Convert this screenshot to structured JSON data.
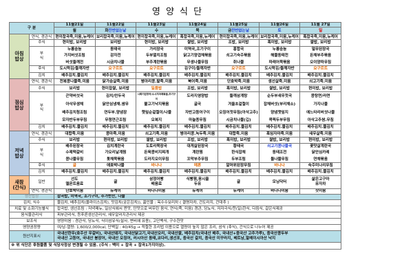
{
  "title": "영 양 식 단",
  "header": {
    "label": "구  분",
    "days": [
      {
        "date": "11월21일",
        "weekday": "월",
        "note": ""
      },
      {
        "date": "11월22일",
        "weekday": "화",
        "note": "잔반없는날"
      },
      {
        "date": "11월23일",
        "weekday": "수",
        "note": ""
      },
      {
        "date": "11월24일",
        "weekday": "목",
        "note": ""
      },
      {
        "date": "11월25일",
        "weekday": "금",
        "note": "잔반없는날"
      },
      {
        "date": "11월26일",
        "weekday": "토",
        "note": ""
      },
      {
        "date": "11월 27일",
        "weekday": "일",
        "note": ""
      }
    ],
    "weekday_colors": {
      "토": "#1f3fd6",
      "일": "#e00000",
      "note": "#1f3fd6"
    }
  },
  "colors": {
    "header": "#b7dee8",
    "breakfast": "#d7e4bc",
    "lunch": "#e6b9b8",
    "dinner": "#b9cde5",
    "snack": "#fac08f",
    "dessert_text": "#e36c09"
  },
  "meals": [
    {
      "key": "breakfast",
      "label": "아침\n밥상",
      "groups": [
        {
          "label": "연식, 경관식",
          "rows": [
            [
              "현미찹곡죽,미음,뉴케어",
              "보리찹곡죽,미음,뉴케어",
              "현미찹곡죽,미음,뉴케어",
              "흑찹곡죽,미음,뉴케어",
              "현미찹곡죽,미음,뉴케어",
              "보리찹곡죽,미음,뉴케어",
              "흑찹곡죽,미음,뉴케어"
            ]
          ]
        },
        {
          "label": "주식",
          "rows": [
            [
              "현미밥, 보리밥",
              "보리밥",
              "현미밥, 보리밥",
              "쌀밥, 보리밥",
              "조밥, 보리밥",
              "흑미밥, 보리밥",
              "쌀밥, 보리밥"
            ]
          ]
        },
        {
          "label": "부\n식",
          "rows": [
            [
              "누룽숭늉",
              "동태국",
              "가리장국",
              "미역국,조기구이",
              "홍합국",
              "누룽숭늉",
              "얼무된장국"
            ],
            [
              "가지버섯조림",
              "감자전",
              "두부멸치조림",
              "닭고기양겹채볶음",
              "쇠고기숙주볶음",
              "해물동태전",
              "돈채부추볶음"
            ],
            [
              "버섯들깨전",
              "시금치나물",
              "부추계란볶음",
              "무생나물무침",
              "취나물",
              "파래어묵볶음",
              "오이양파무침"
            ]
          ]
        },
        {
          "label": "후식",
          "rows": [
            [
              "도시락김/들깨자반",
              {
                "t": "요구르트",
                "c": "orange"
              },
              {
                "t": "요구르트",
                "c": "orange"
              },
              "김구이/들깨자반",
              {
                "t": "요구르트",
                "c": "orange"
              },
              "도시락김/들깨자반",
              {
                "t": "요구르트",
                "c": "orange"
              }
            ]
          ]
        },
        {
          "label": "김치",
          "rows": [
            [
              "배추김치.물김치",
              "배추김치.물김치",
              "배추김치.물김치",
              "배추김치.물김치",
              "배추김치.물김치",
              "배추김치.물김치",
              "배추김치.물김치"
            ]
          ]
        }
      ]
    },
    {
      "key": "lunch",
      "label": "점심\n밥상",
      "groups": [
        {
          "label": "연식, 경관식",
          "rows": [
            [
              "전복콩나물죽.미음",
              "닭가슴살죽.미음",
              "병아리콩.팥죽.미음",
              "북어죽.미음",
              "단호박죽.미음",
              "생선살죽.미음",
              "쇠고기죽.미음"
            ]
          ]
        },
        {
          "label": "주식",
          "rows": [
            [
              "보리밥",
              "현미찹쌀, 보리밥",
              {
                "t": "일품밥",
                "c": "orange"
              },
              "조밥, 보리밥",
              "흑미밥, 보리밥",
              "쌀밥, 보리밥",
              "현미밥, 보리밥"
            ]
          ]
        },
        {
          "label": "부\n식",
          "rows": [
            [
              "곤약버섯국",
              "김치/만두국",
              "시래기된장국/소시지야채볶음,조기구이",
              "도라지영양밥",
              "들깨삼계탕",
              "순두부새우젓국",
              "콩탕면/라면"
            ],
            [
              "아삭무생채",
              "닭안심냉채.쌈무",
              "불고기낙지볶음",
              "굴국",
              "겨울초겉절이",
              "잡채버섯(부리채소)",
              "가지나물"
            ],
            [
              "배추김치청조림",
              "연두부.양념장",
              "햇잎순겉절이/나물",
              "자반고등어구이",
              "오징어젓무침(아삭고추)",
              "양념깻잎지",
              "애느타리버섯나물"
            ],
            [
              "모자반두부무침",
              "무청연근조림",
              "오복지",
              "마늘종무침",
              "시금치나물(깁)",
              "콕찍두부무침",
              "아삭고추쌈.무침"
            ]
          ]
        },
        {
          "label": "김치",
          "rows": [
            [
              "배추김치.물김치",
              "배추김치.물김치",
              "배추김치.물김치",
              "배추김치.물김치",
              "배추김치.물김치",
              "배추김치.물김치",
              "배추김치.물김치"
            ]
          ]
        }
      ]
    },
    {
      "key": "dinner",
      "label": "저녁\n밥상",
      "groups": [
        {
          "label": "연식, 경관식",
          "rows": [
            [
              "대합죽.미음",
              "콩마죽.미음",
              "쇠고기죽.미음",
              "병아리콩.녹두죽.미음",
              "대합죽.미음",
              "흑임자마죽.미음",
              "새우살죽.미음"
            ]
          ]
        },
        {
          "label": "주식",
          "rows": [
            [
              "보리밥",
              "현미밥, 보리밥",
              "쌀밥, 보리밥",
              "조밥, 보리밥",
              "흑미밥, 보리밥",
              "쌀밥, 보리밥",
              "현미밥, 보리밥"
            ]
          ]
        },
        {
          "label": "부\n식",
          "rows": [
            [
              "배추된장국",
              "김치계란국",
              "도토리묵장국",
              "대게살된장국",
              "황태국",
              {
                "t": "쇠고기콩나물국",
                "c": "blue"
              },
              "꽃맛살계란국"
            ],
            [
              "수제떡갈비",
              "가오리날계찜",
              "돈육콩비지찌개",
              "계란찜",
              "한식잡채",
              "동태조전",
              "닭안심카레"
            ],
            [
              "콩나물무침",
              "톳채묵볶음",
              "도라지오이무침",
              "꼬막부추무침",
              "두부조림",
              "돌나물무침",
              "연채볶음"
            ]
          ]
        },
        {
          "label": "후식",
          "rows": [
            [
              {
                "t": "귤",
                "c": "orange"
              },
              "애호박나물",
              {
                "t": "바나나",
                "c": "orange"
              },
              {
                "t": "메론",
                "c": "orange"
              },
              "알머위된장무침",
              {
                "t": "바나나",
                "c": "orange"
              },
              "숙주미나리무침"
            ]
          ]
        },
        {
          "label": "김치",
          "rows": [
            [
              "배추김치.물김치",
              "배추김치.물김치",
              "배추김치.물김치",
              "배추김치.물김치",
              "배추김치.물김치",
              "배추김치.물김치",
              "배추김치.물김치"
            ]
          ]
        }
      ]
    },
    {
      "key": "snack",
      "label": "새참\n(간식)",
      "groups": [
        {
          "label": "일반",
          "rows": [
            [
              "선도\n델몬트음료",
              "귤",
              "삼정어빵\n배음료",
              "식빵잼,옹시쿨\n두유",
              "귤",
              "모닝닥터",
              "삶은고구마\n유자차"
            ]
          ]
        },
        {
          "label": "연식, 경관식",
          "rows": [
            [
              "단호박미음",
              "뉴케어",
              "바나나미음",
              "뉴케어",
              "뉴케어",
              "바나나미음",
              "잣미음"
            ]
          ]
        }
      ]
    }
  ],
  "info": [
    {
      "label": "생산밥상",
      "value": "잡곡밥, 미역국, 조기구이, 추가반찬, 나물",
      "style": "blue"
    },
    {
      "label": "김치, 식수",
      "value": "물김치, 배추김치(올라이스김치), 맛김치(궁은김치)),   끓인물 : 옥수수보리차 ( 결명자차, 건도라지, 건대추 )"
    },
    {
      "label": "치료 및 소화기능별식",
      "value": "잡곡밥, 생선조림 : 저녁메뉴, 일상식에서 짠맛, 단맛으로 버무린 음식, 연식(죽, 미음) 경관, 당뇨식, 저자극식/찬(일)한식, 다짐식, 갈은식제공"
    },
    {
      "label": "음식물관리식",
      "value": "피부관리식, 등푸른생선관리식, 새우알러지관리식 제공"
    },
    {
      "label": "보조식",
      "value": "영양미음 : 경관식, 당뇨식, 식이섬유식(설사, 변비에 유용), 고단백식, 구수한맛"
    },
    {
      "label": "영양권장량",
      "value": "여/남-열량: 1,600/2,000cal, 단백질 : 40/45g → 적절한 조리법 이용으로 열량이 높지 않은 조리, 삼식 (후식), 간식으로 나누어 제공"
    },
    {
      "label": "원산지표시",
      "value": "국내산한우(호주산 우갈비), 국내산돼지, 국내산닭고기,국내산오리, 국내산쌀, 배추김치(국내산 배추, 국내산+중국산 고추가루), 중국산콩두부\n국내산 고등어, 국내산 붕장어, 국내산 오징어, 러시아산 동태,코다리,생선포, 중국산 갈치, 중국산 미꾸라지, 베트남,말레이시아산 낙지",
      "style": "blue"
    }
  ],
  "footer": "※ 위 식단은 후원물품 및 식당사정상 변경될 수 있음. (주식 : 백미 + 잡곡 + 잡곡1가지이상)."
}
